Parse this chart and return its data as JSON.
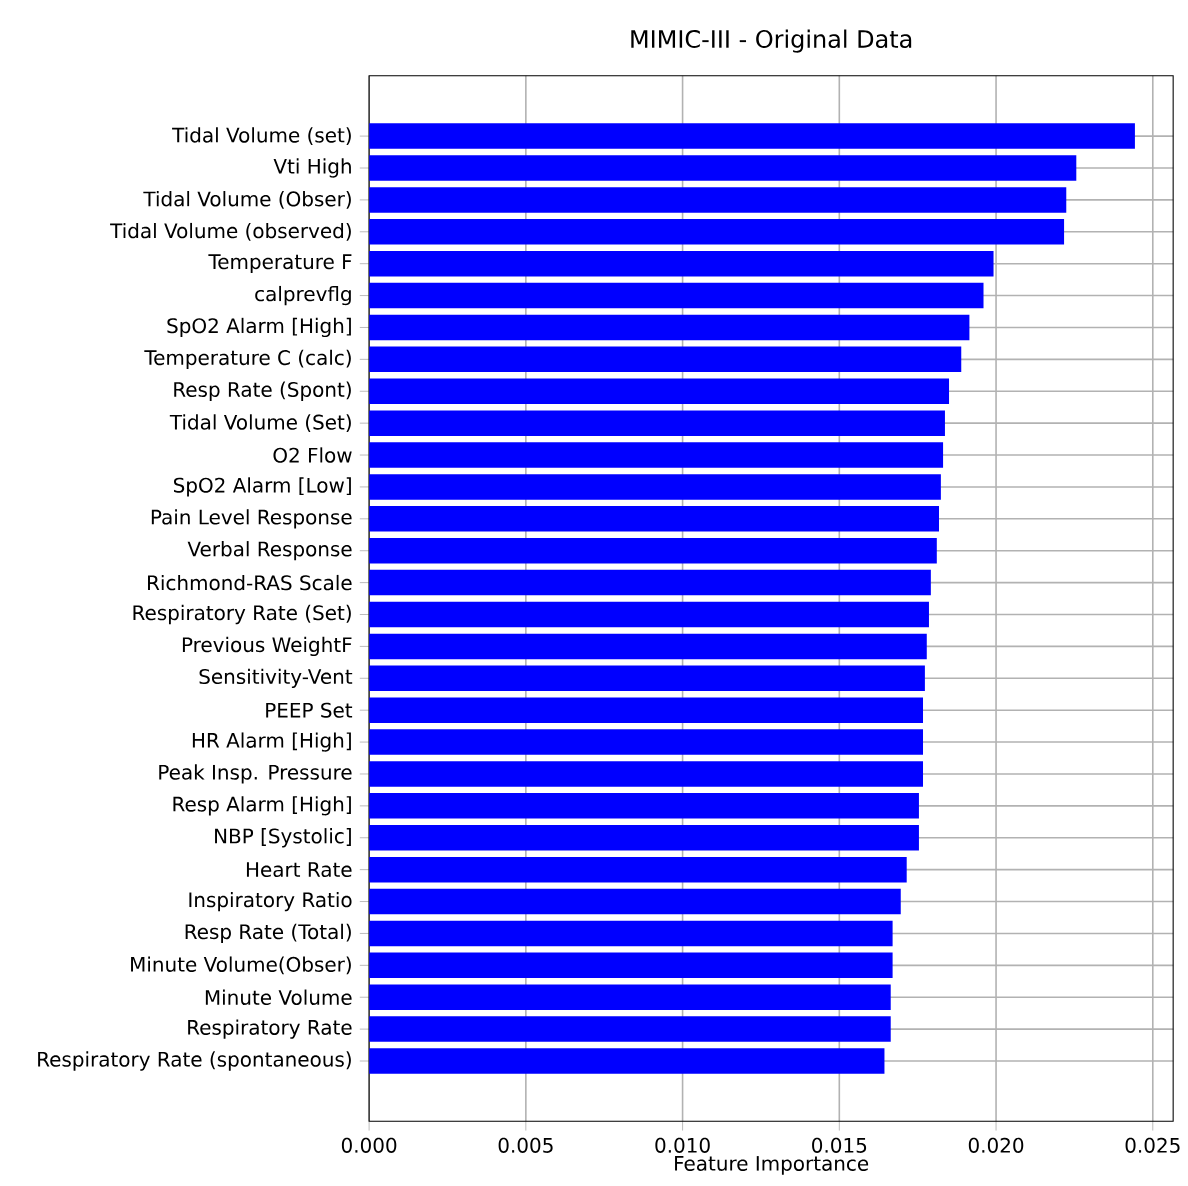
{
  "chart_data": {
    "type": "bar",
    "orientation": "horizontal",
    "title": "MIMIC-III - Original Data",
    "xlabel": "Feature Importance",
    "categories": [
      "Tidal Volume (set)",
      "Vti High",
      "Tidal Volume (Obser)",
      "Tidal Volume (observed)",
      "Temperature F",
      "calprevflg",
      "SpO2 Alarm [High]",
      "Temperature C (calc)",
      "Resp Rate (Spont)",
      "Tidal Volume (Set)",
      "O2 Flow",
      "SpO2 Alarm [Low]",
      "Pain Level Response",
      "Verbal Response",
      "Richmond-RAS Scale",
      "Respiratory Rate (Set)",
      "Previous WeightF",
      "Sensitivity-Vent",
      "PEEP Set",
      "HR Alarm [High]",
      "Peak Insp. Pressure",
      "Resp Alarm [High]",
      "NBP [Systolic]",
      "Heart Rate",
      "Inspiratory Ratio",
      "Resp Rate (Total)",
      "Minute Volume(Obser)",
      "Minute Volume",
      "Respiratory Rate",
      "Respiratory Rate (spontaneous)"
    ],
    "values": [
      0.02443,
      0.02256,
      0.02224,
      0.02217,
      0.01992,
      0.0196,
      0.01915,
      0.01889,
      0.0185,
      0.01837,
      0.01831,
      0.01824,
      0.01818,
      0.01811,
      0.01792,
      0.01786,
      0.01779,
      0.01773,
      0.01767,
      0.01767,
      0.01767,
      0.01754,
      0.01754,
      0.01715,
      0.01696,
      0.0167,
      0.0167,
      0.01664,
      0.01664,
      0.01644
    ],
    "color": "#0000ff",
    "xlim": [
      0,
      0.02565
    ],
    "xticks": [
      {
        "value": 0,
        "label": "0.000"
      },
      {
        "value": 0.005,
        "label": "0.005"
      },
      {
        "value": 0.01,
        "label": "0.010"
      },
      {
        "value": 0.015,
        "label": "0.015"
      },
      {
        "value": 0.02,
        "label": "0.020"
      },
      {
        "value": 0.025,
        "label": "0.025"
      }
    ],
    "grid": true
  }
}
